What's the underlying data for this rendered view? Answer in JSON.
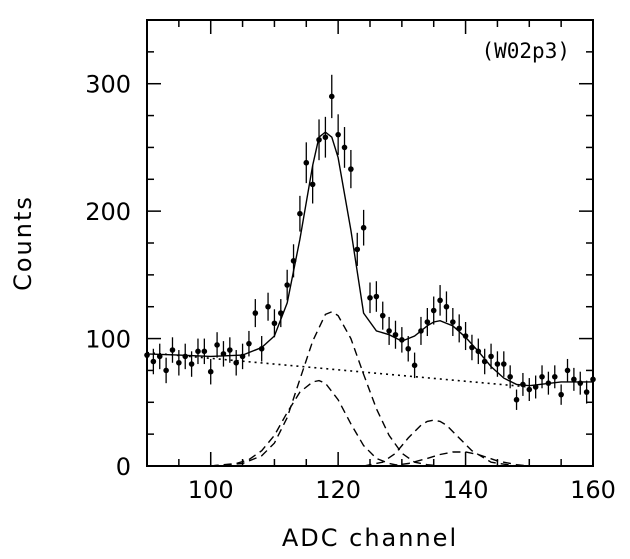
{
  "chart_data": {
    "type": "scatter",
    "title": "",
    "annotation": "(W02p3)",
    "xlabel": "ADC channel",
    "ylabel": "Counts",
    "xlim": [
      90,
      160
    ],
    "ylim": [
      0,
      350
    ],
    "x_ticks": [
      100,
      120,
      140,
      160
    ],
    "y_ticks": [
      0,
      100,
      200,
      300
    ],
    "grid": false,
    "legend": "none",
    "colors": {
      "data": "#000000",
      "fit": "#000000",
      "background_line": "#000000"
    },
    "series": [
      {
        "kind": "data-points-with-error-bars",
        "x": [
          90,
          91,
          92,
          93,
          94,
          95,
          96,
          97,
          98,
          99,
          100,
          101,
          102,
          103,
          104,
          105,
          106,
          107,
          108,
          109,
          110,
          111,
          112,
          113,
          114,
          115,
          116,
          117,
          118,
          119,
          120,
          121,
          122,
          123,
          124,
          125,
          126,
          127,
          128,
          129,
          130,
          131,
          132,
          133,
          134,
          135,
          136,
          137,
          138,
          139,
          140,
          141,
          142,
          143,
          144,
          145,
          146,
          147,
          148,
          149,
          150,
          151,
          152,
          153,
          154,
          155,
          156,
          157,
          158,
          159,
          160
        ],
        "y": [
          87,
          82,
          86,
          75,
          91,
          81,
          86,
          80,
          90,
          90,
          74,
          95,
          88,
          91,
          81,
          86,
          96,
          120,
          92,
          125,
          112,
          120,
          142,
          161,
          198,
          238,
          221,
          256,
          258,
          290,
          260,
          250,
          233,
          170,
          187,
          132,
          133,
          118,
          106,
          103,
          99,
          92,
          79,
          106,
          113,
          122,
          130,
          125,
          113,
          108,
          102,
          93,
          90,
          82,
          86,
          80,
          80,
          70,
          52,
          64,
          60,
          62,
          70,
          65,
          70,
          56,
          75,
          68,
          65,
          58,
          68
        ],
        "error": [
          10,
          10,
          10,
          10,
          10,
          10,
          10,
          10,
          10,
          10,
          10,
          10,
          10,
          10,
          10,
          10,
          10,
          11,
          10,
          11,
          11,
          11,
          12,
          13,
          14,
          16,
          15,
          16,
          16,
          17,
          16,
          16,
          15,
          13,
          14,
          12,
          12,
          11,
          11,
          11,
          10,
          10,
          10,
          11,
          11,
          11,
          12,
          12,
          11,
          11,
          11,
          10,
          10,
          10,
          10,
          10,
          10,
          9,
          8,
          9,
          9,
          9,
          9,
          9,
          9,
          8,
          9,
          9,
          9,
          9,
          9
        ]
      },
      {
        "kind": "total-fit",
        "style": "solid",
        "x": [
          90,
          95,
          100,
          105,
          108,
          110,
          112,
          114,
          116,
          117,
          118,
          119,
          120,
          122,
          124,
          126,
          128,
          130,
          132,
          134,
          135,
          136,
          138,
          140,
          142,
          144,
          146,
          148,
          150,
          155,
          160
        ],
        "y": [
          88,
          87,
          86,
          87,
          93,
          102,
          128,
          178,
          236,
          258,
          262,
          258,
          242,
          185,
          120,
          106,
          103,
          98,
          102,
          110,
          113,
          114,
          110,
          101,
          90,
          78,
          69,
          64,
          63,
          66,
          66
        ]
      },
      {
        "kind": "background",
        "style": "dotted",
        "x": [
          90,
          150
        ],
        "y": [
          89,
          62
        ]
      },
      {
        "kind": "gaussian-component",
        "style": "dashed",
        "x": [
          100,
          105,
          108,
          110,
          112,
          114,
          116,
          118,
          119,
          120,
          122,
          124,
          126,
          128,
          130,
          132,
          134,
          136,
          138,
          140
        ],
        "y": [
          0,
          2,
          8,
          18,
          38,
          68,
          98,
          119,
          121,
          118,
          100,
          72,
          45,
          24,
          10,
          3,
          1,
          0,
          0,
          0
        ]
      },
      {
        "kind": "gaussian-component",
        "style": "dashed",
        "x": [
          100,
          104,
          106,
          108,
          110,
          112,
          114,
          116,
          117,
          118,
          120,
          122,
          124,
          126,
          128,
          130
        ],
        "y": [
          0,
          2,
          5,
          12,
          24,
          42,
          58,
          66,
          67,
          65,
          52,
          33,
          16,
          6,
          2,
          0
        ]
      },
      {
        "kind": "gaussian-component",
        "style": "dashed",
        "x": [
          124,
          127,
          129,
          131,
          133,
          134,
          135,
          136,
          137,
          139,
          141,
          144,
          148
        ],
        "y": [
          0,
          3,
          10,
          22,
          32,
          35,
          36,
          35,
          32,
          22,
          12,
          3,
          0
        ]
      },
      {
        "kind": "gaussian-component",
        "style": "dashed",
        "x": [
          128,
          131,
          134,
          136,
          138,
          139,
          140,
          142,
          145,
          148,
          150
        ],
        "y": [
          0,
          2,
          6,
          9,
          11,
          11,
          11,
          9,
          4,
          1,
          0
        ]
      }
    ]
  }
}
